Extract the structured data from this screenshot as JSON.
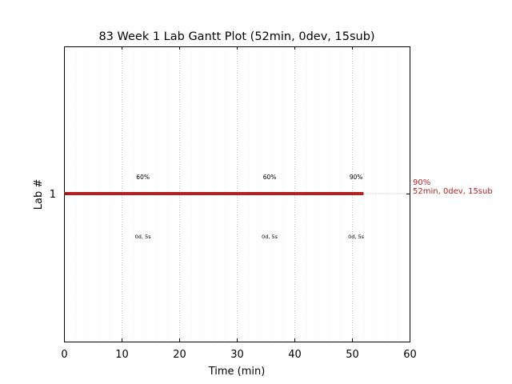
{
  "chart_data": {
    "type": "gantt",
    "title": "83 Week 1 Lab Gantt Plot (52min, 0dev, 15sub)",
    "xlabel": "Time (min)",
    "ylabel": "Lab #",
    "xlim": [
      0,
      60
    ],
    "x_ticks": [
      "0",
      "10",
      "20",
      "30",
      "40",
      "50",
      "60"
    ],
    "grid": true,
    "rows": [
      {
        "label": "1",
        "start": 0,
        "end": 52,
        "color": "#b22222",
        "end_label_line1": "90%",
        "end_label_line2": "52min, 0dev, 15sub",
        "annotations": [
          {
            "x": 13.7,
            "top": "60%",
            "bottom": "0d, 5s"
          },
          {
            "x": 35.7,
            "top": "60%",
            "bottom": "0d, 5s"
          },
          {
            "x": 50.7,
            "top": "90%",
            "bottom": "0d, 5s"
          }
        ]
      }
    ]
  }
}
